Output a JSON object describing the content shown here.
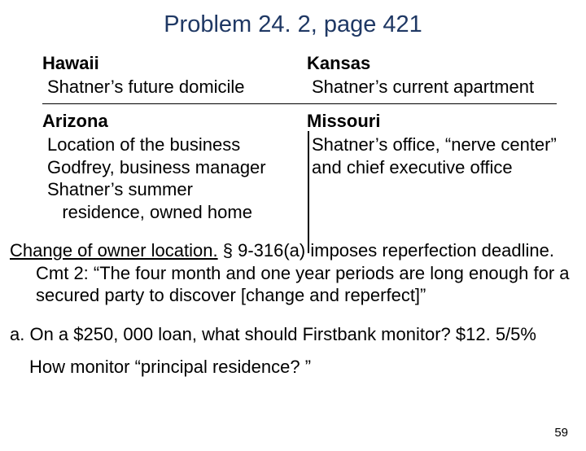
{
  "title": "Problem 24. 2, page 421",
  "cell": {
    "tl_state": "Hawaii",
    "tl_desc": "Shatner’s future domicile",
    "tr_state": "Kansas",
    "tr_desc": "Shatner’s current apartment",
    "bl_state": "Arizona",
    "bl_desc": "Location of the business\nGodfrey, business manager\nShatner’s summer\n   residence, owned home",
    "br_state": "Missouri",
    "br_desc": "Shatner’s office, “nerve center” and chief executive office"
  },
  "para1_lead": "Change of owner location.",
  "para1_rest": " § 9-316(a) imposes reperfection deadline.  Cmt 2: “The four month and one year periods are long enough for a secured party to discover [change and reperfect]”",
  "para2": "a. On a $250, 000 loan, what should Firstbank monitor? $12. 5/5%",
  "para3": "How monitor “principal residence? ”",
  "pagenum": "59",
  "colors": {
    "title": "#1f3864",
    "text": "#000000",
    "bg": "#ffffff",
    "rule": "#000000"
  },
  "fontsizes": {
    "title_pt": 29,
    "body_pt": 22,
    "pagenum_pt": 15
  }
}
